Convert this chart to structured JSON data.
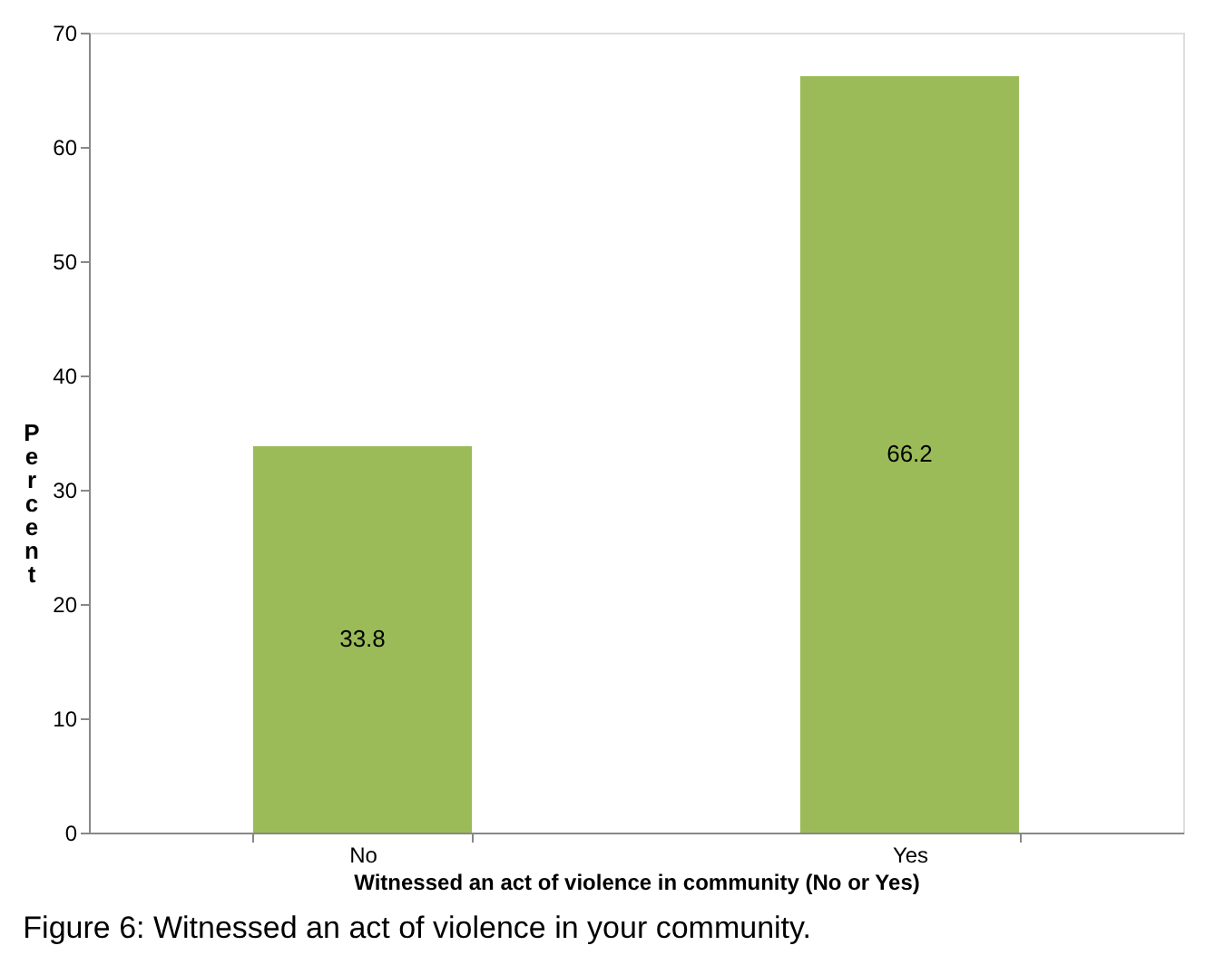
{
  "chart_data": {
    "type": "bar",
    "categories": [
      "No",
      "Yes"
    ],
    "values": [
      33.8,
      66.2
    ],
    "color": "#9bbb59",
    "ylim": [
      0,
      70
    ],
    "yticks": [
      0,
      10,
      20,
      30,
      40,
      50,
      60,
      70
    ],
    "grid": false,
    "data_labels": true,
    "xlabel": "Witnessed an act of violence in community (No or Yes)",
    "ylabel": "Percent",
    "annotations": [
      "Figure 6: Witnessed an act of violence in your community."
    ]
  }
}
